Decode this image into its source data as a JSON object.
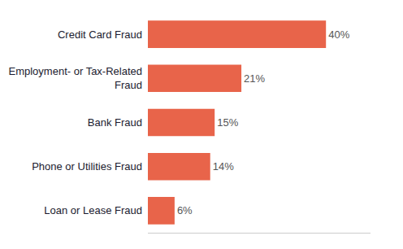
{
  "chart_data": {
    "type": "bar",
    "orientation": "horizontal",
    "categories": [
      "Loan or Lease Fraud",
      "Phone or Utilities Fraud",
      "Bank Fraud",
      "Employment- or Tax-Related\nFraud",
      "Credit Card Fraud"
    ],
    "values": [
      6,
      14,
      15,
      21,
      40
    ],
    "value_labels": [
      "6%",
      "14%",
      "15%",
      "21%",
      "40%"
    ],
    "data_labels": true,
    "color": "#E8644A",
    "xlim": [
      0,
      50
    ],
    "tick_labels": "y",
    "grid": false
  }
}
